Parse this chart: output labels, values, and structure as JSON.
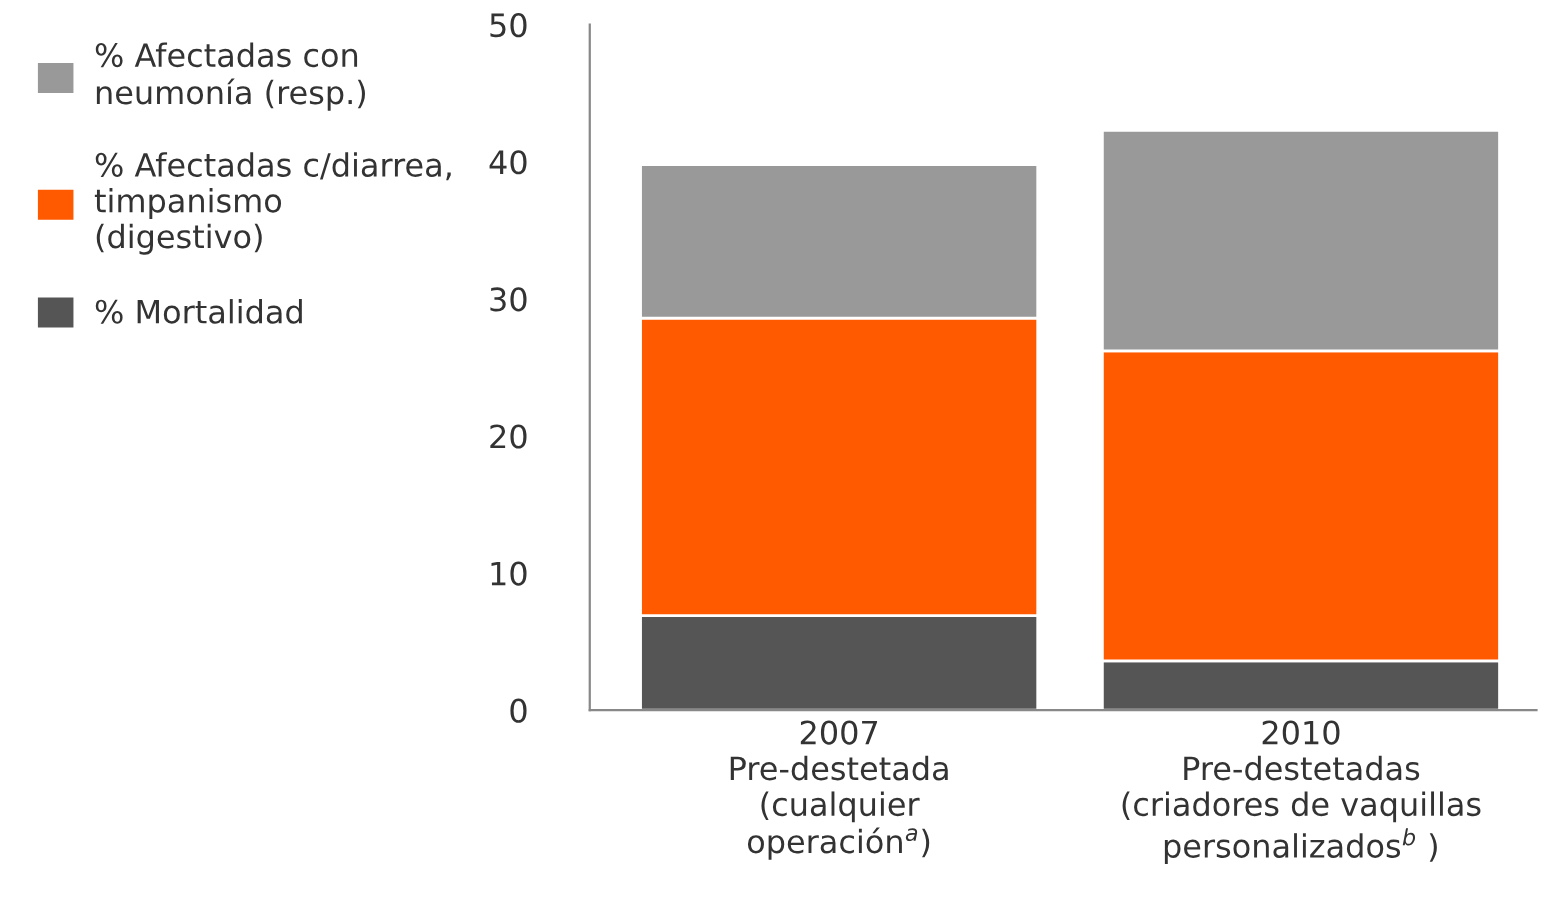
{
  "chart_data": {
    "type": "bar",
    "stacked": true,
    "categories": [
      "2007\nPre-destetada\n(cualquier\noperación$^{a}$)",
      "2010\nPre-destetadas\n(criadores de vaquillas\npersonalizados$^{b}$ )"
    ],
    "series": [
      {
        "name": "% Mortalidad",
        "color": "#555555",
        "values": [
          6.9,
          3.6
        ]
      },
      {
        "name": "% Afectadas c/diarrea,\ntimpanismo\n(digestivo)",
        "color": "#ff5a00",
        "values": [
          21.7,
          22.6
        ]
      },
      {
        "name": "% Afectadas con\nneumonía (resp.)",
        "color": "#999999",
        "values": [
          11.2,
          16.1
        ]
      }
    ],
    "ylim": [
      0,
      50
    ],
    "yticks": [
      0,
      10,
      20,
      30,
      40,
      50
    ],
    "legend": "left",
    "grid": false
  }
}
